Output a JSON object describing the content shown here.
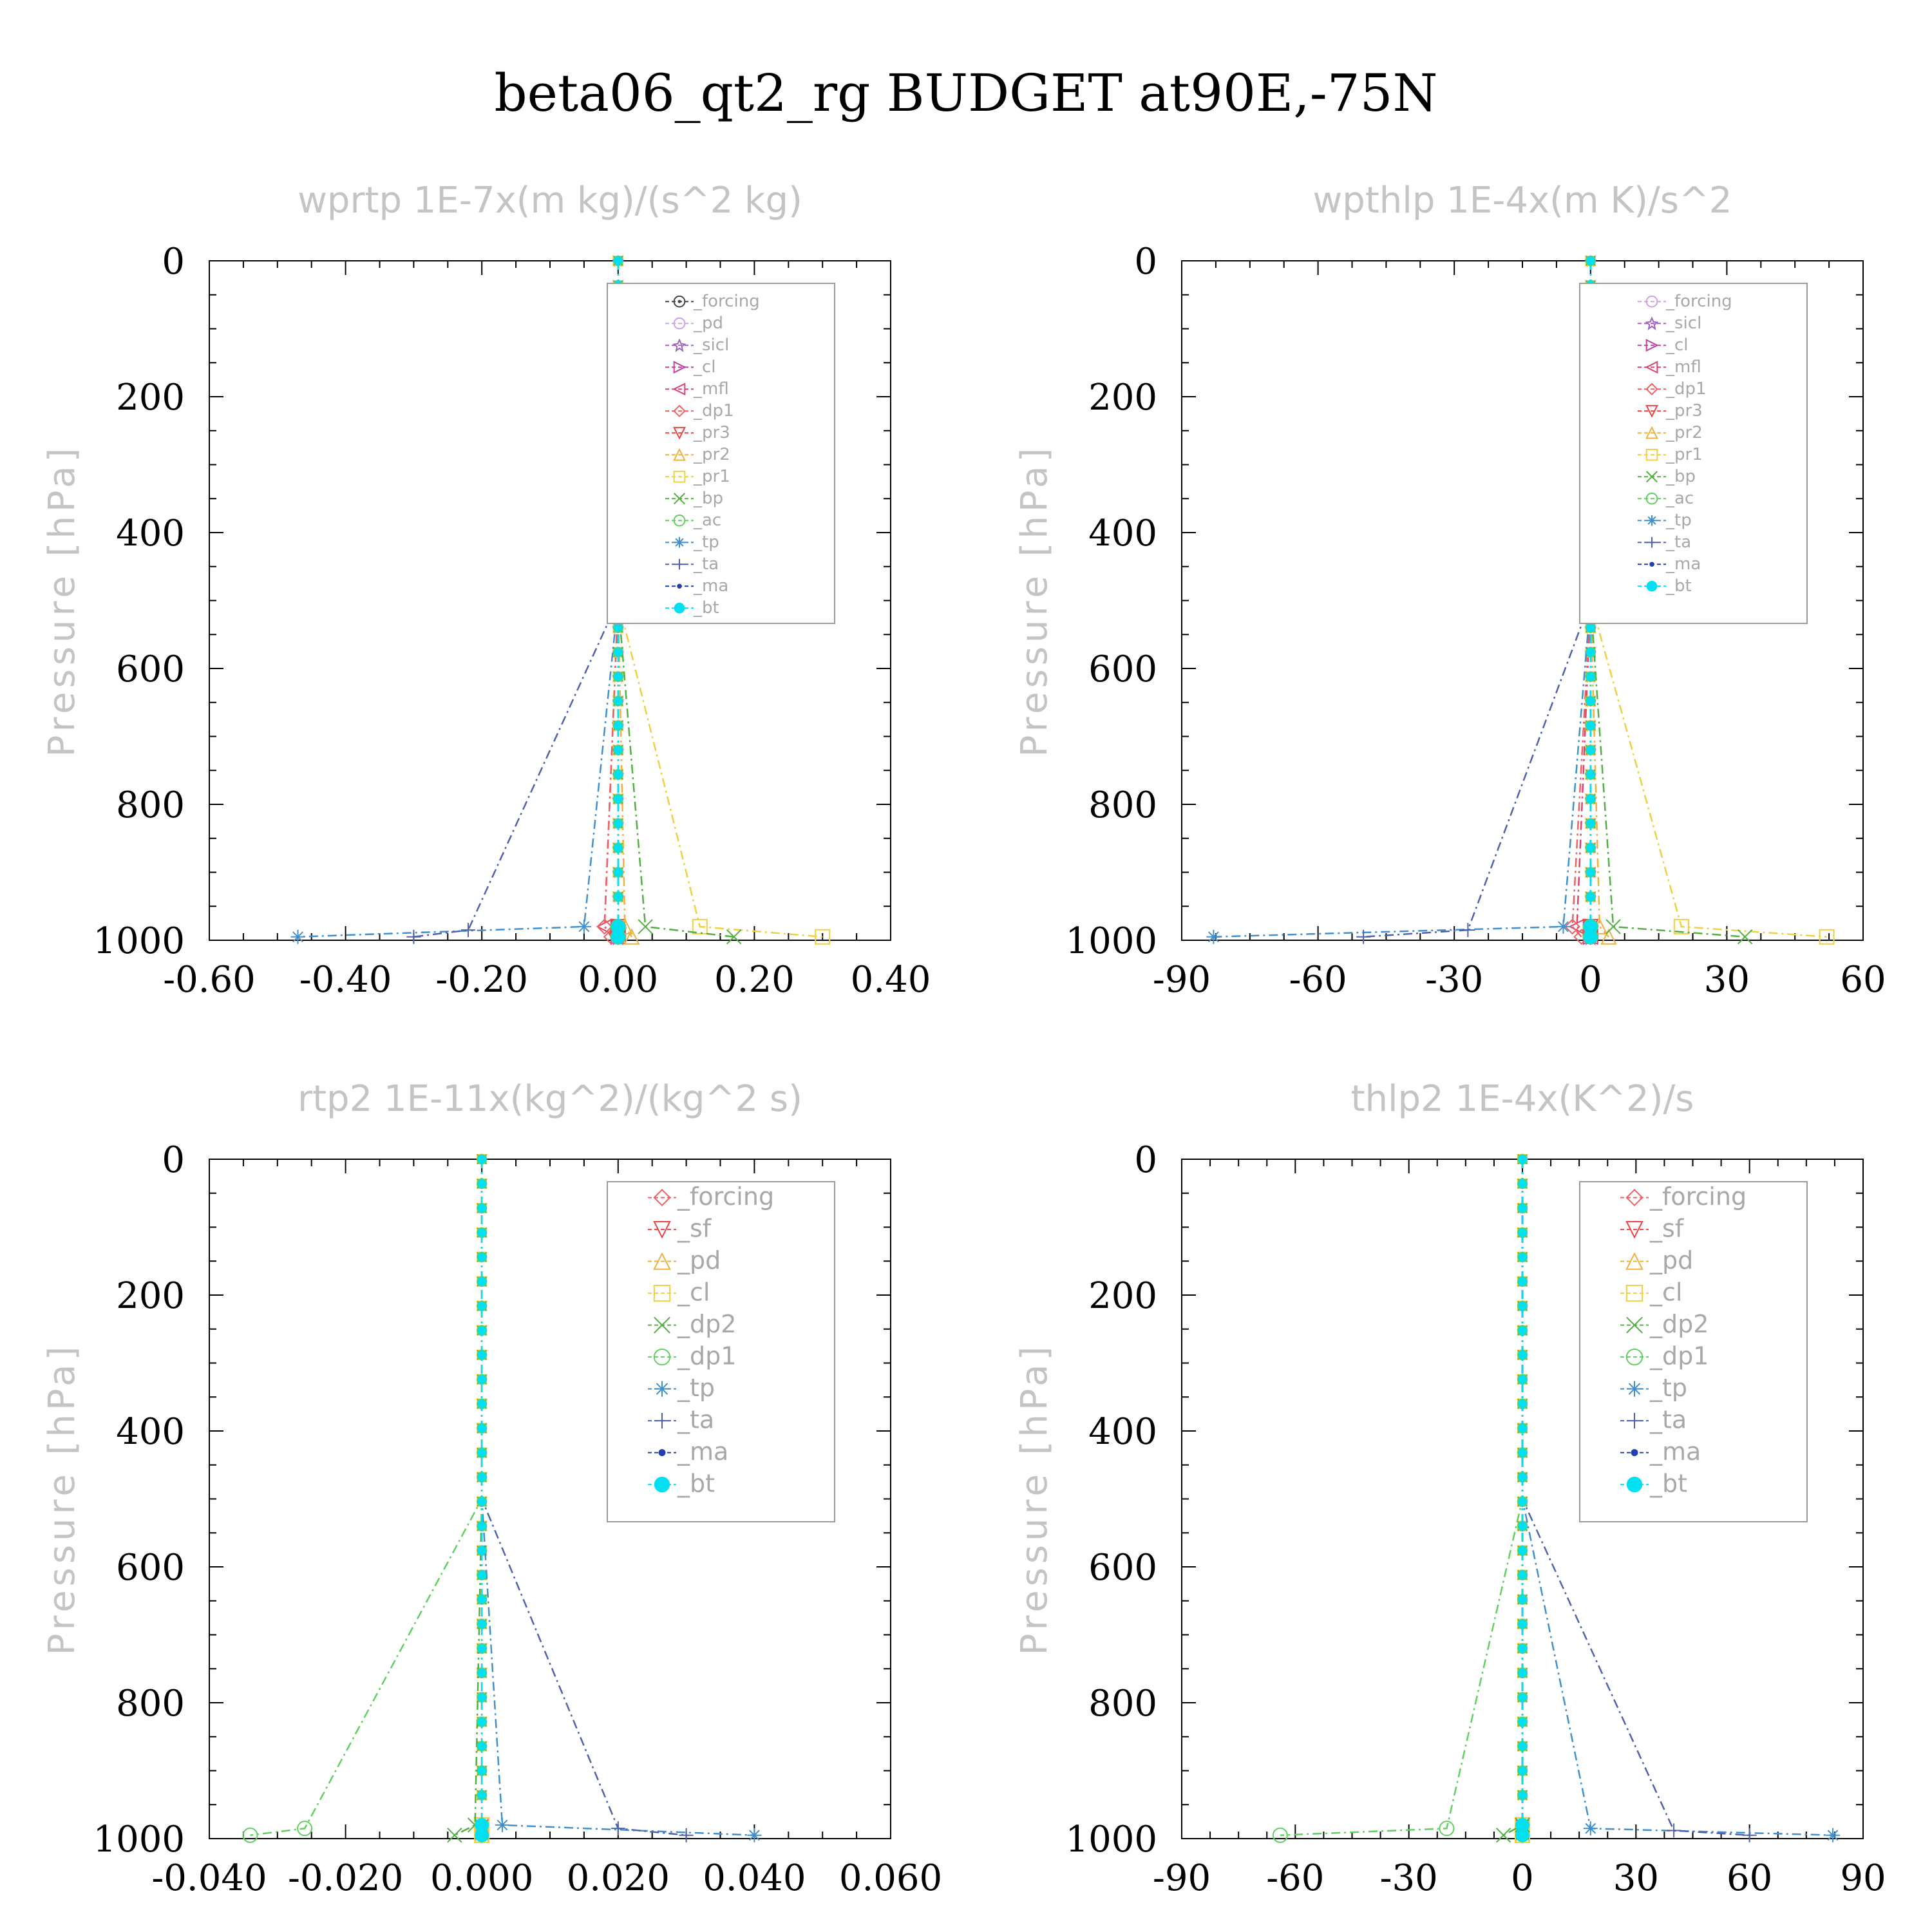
{
  "title": "beta06_qt2_rg  BUDGET at90E,-75N",
  "chart_data": [
    {
      "type": "line",
      "title": "wprtp   1E-7x(m kg)/(s^2 kg)",
      "ylabel": "Pressure [hPa]",
      "xlim": [
        -0.6,
        0.4
      ],
      "ylim": [
        1000,
        0
      ],
      "xticks": [
        "-0.60",
        "-0.40",
        "-0.20",
        "0.00",
        "0.20",
        "0.40"
      ],
      "yticks": [
        "0",
        "200",
        "400",
        "600",
        "800",
        "1000"
      ],
      "legend_position": "top-right",
      "series": [
        {
          "name": "_forcing",
          "color": "#444444",
          "marker": "circle-dot",
          "x": [
            0,
            0,
            0,
            0
          ],
          "y": [
            0,
            500,
            980,
            995
          ]
        },
        {
          "name": "_pd",
          "color": "#d0a0e8",
          "marker": "circle",
          "x": [
            0,
            0,
            0,
            0
          ],
          "y": [
            0,
            500,
            980,
            995
          ]
        },
        {
          "name": "_sicl",
          "color": "#a060c0",
          "marker": "star",
          "x": [
            0,
            0,
            0,
            0
          ],
          "y": [
            0,
            500,
            980,
            995
          ]
        },
        {
          "name": "_cl",
          "color": "#c040a0",
          "marker": "triangle-right",
          "x": [
            0,
            0,
            0,
            0
          ],
          "y": [
            0,
            500,
            980,
            995
          ]
        },
        {
          "name": "_mfl",
          "color": "#e04070",
          "marker": "triangle-left",
          "x": [
            0,
            0,
            -0.02,
            0
          ],
          "y": [
            0,
            500,
            980,
            995
          ]
        },
        {
          "name": "_dp1",
          "color": "#f06060",
          "marker": "diamond",
          "x": [
            0,
            0,
            -0.02,
            -0.01
          ],
          "y": [
            0,
            500,
            980,
            995
          ]
        },
        {
          "name": "_pr3",
          "color": "#f04040",
          "marker": "triangle-down",
          "x": [
            0,
            0,
            0,
            0
          ],
          "y": [
            0,
            500,
            980,
            995
          ]
        },
        {
          "name": "_pr2",
          "color": "#f0b040",
          "marker": "triangle-up",
          "x": [
            0,
            0,
            0.01,
            0.02
          ],
          "y": [
            0,
            500,
            980,
            995
          ]
        },
        {
          "name": "_pr1",
          "color": "#f0d040",
          "marker": "square",
          "x": [
            0,
            0,
            0.12,
            0.3
          ],
          "y": [
            0,
            500,
            980,
            995
          ]
        },
        {
          "name": "_bp",
          "color": "#50b040",
          "marker": "x",
          "x": [
            0,
            0,
            0.04,
            0.17
          ],
          "y": [
            0,
            500,
            980,
            995
          ]
        },
        {
          "name": "_ac",
          "color": "#60d060",
          "marker": "circle",
          "x": [
            0,
            0,
            0,
            0
          ],
          "y": [
            0,
            500,
            980,
            995
          ]
        },
        {
          "name": "_tp",
          "color": "#4090d0",
          "marker": "asterisk",
          "x": [
            0,
            0,
            -0.05,
            -0.47
          ],
          "y": [
            0,
            500,
            980,
            995
          ]
        },
        {
          "name": "_ta",
          "color": "#5060b0",
          "marker": "plus",
          "x": [
            0,
            0,
            -0.22,
            -0.3
          ],
          "y": [
            0,
            500,
            985,
            995
          ]
        },
        {
          "name": "_ma",
          "color": "#2040b0",
          "marker": "dot",
          "x": [
            0,
            0,
            0,
            0
          ],
          "y": [
            0,
            500,
            980,
            995
          ]
        },
        {
          "name": "_bt",
          "color": "#00e0f0",
          "marker": "filled-circle",
          "x": [
            0,
            0,
            0,
            0
          ],
          "y": [
            0,
            500,
            980,
            995
          ]
        }
      ]
    },
    {
      "type": "line",
      "title": "wpthlp   1E-4x(m K)/s^2",
      "ylabel": "Pressure [hPa]",
      "xlim": [
        -90,
        60
      ],
      "ylim": [
        1000,
        0
      ],
      "xticks": [
        "-90",
        "-60",
        "-30",
        "0",
        "30",
        "60"
      ],
      "yticks": [
        "0",
        "200",
        "400",
        "600",
        "800",
        "1000"
      ],
      "legend_position": "top-right",
      "series": [
        {
          "name": "_forcing",
          "color": "#d0a0e8",
          "marker": "circle",
          "x": [
            0,
            0,
            0,
            0
          ],
          "y": [
            0,
            500,
            980,
            995
          ]
        },
        {
          "name": "_sicl",
          "color": "#a060c0",
          "marker": "star",
          "x": [
            0,
            0,
            0,
            0
          ],
          "y": [
            0,
            500,
            980,
            995
          ]
        },
        {
          "name": "_cl",
          "color": "#c040a0",
          "marker": "triangle-right",
          "x": [
            0,
            0,
            0,
            0
          ],
          "y": [
            0,
            500,
            980,
            995
          ]
        },
        {
          "name": "_mfl",
          "color": "#e04070",
          "marker": "triangle-left",
          "x": [
            0,
            0,
            -3,
            0
          ],
          "y": [
            0,
            500,
            980,
            995
          ]
        },
        {
          "name": "_dp1",
          "color": "#f06060",
          "marker": "diamond",
          "x": [
            0,
            0,
            -4,
            -2
          ],
          "y": [
            0,
            500,
            980,
            995
          ]
        },
        {
          "name": "_pr3",
          "color": "#f04040",
          "marker": "triangle-down",
          "x": [
            0,
            0,
            0,
            0
          ],
          "y": [
            0,
            500,
            980,
            995
          ]
        },
        {
          "name": "_pr2",
          "color": "#f0b040",
          "marker": "triangle-up",
          "x": [
            0,
            0,
            2,
            4
          ],
          "y": [
            0,
            500,
            980,
            995
          ]
        },
        {
          "name": "_pr1",
          "color": "#f0d040",
          "marker": "square",
          "x": [
            0,
            0,
            20,
            52
          ],
          "y": [
            0,
            500,
            980,
            995
          ]
        },
        {
          "name": "_bp",
          "color": "#50b040",
          "marker": "x",
          "x": [
            0,
            0,
            5,
            34
          ],
          "y": [
            0,
            500,
            980,
            995
          ]
        },
        {
          "name": "_ac",
          "color": "#60d060",
          "marker": "circle",
          "x": [
            0,
            0,
            0,
            0
          ],
          "y": [
            0,
            500,
            980,
            995
          ]
        },
        {
          "name": "_tp",
          "color": "#4090d0",
          "marker": "asterisk",
          "x": [
            0,
            0,
            -6,
            -83
          ],
          "y": [
            0,
            500,
            980,
            995
          ]
        },
        {
          "name": "_ta",
          "color": "#5060b0",
          "marker": "plus",
          "x": [
            0,
            0,
            -27,
            -50
          ],
          "y": [
            0,
            500,
            985,
            995
          ]
        },
        {
          "name": "_ma",
          "color": "#2040b0",
          "marker": "dot",
          "x": [
            0,
            0,
            0,
            0
          ],
          "y": [
            0,
            500,
            980,
            995
          ]
        },
        {
          "name": "_bt",
          "color": "#00e0f0",
          "marker": "filled-circle",
          "x": [
            0,
            0,
            0,
            0
          ],
          "y": [
            0,
            500,
            980,
            995
          ]
        }
      ]
    },
    {
      "type": "line",
      "title": "rtp2   1E-11x(kg^2)/(kg^2 s)",
      "ylabel": "Pressure [hPa]",
      "xlim": [
        -0.04,
        0.06
      ],
      "ylim": [
        1000,
        0
      ],
      "xticks": [
        "-0.040",
        "-0.020",
        "0.000",
        "0.020",
        "0.040",
        "0.060"
      ],
      "yticks": [
        "0",
        "200",
        "400",
        "600",
        "800",
        "1000"
      ],
      "legend_position": "top-right",
      "series": [
        {
          "name": "_forcing",
          "color": "#f06060",
          "marker": "diamond",
          "x": [
            0,
            0,
            0,
            0
          ],
          "y": [
            0,
            500,
            980,
            995
          ]
        },
        {
          "name": "_sf",
          "color": "#f04040",
          "marker": "triangle-down",
          "x": [
            0,
            0,
            0,
            0
          ],
          "y": [
            0,
            500,
            980,
            995
          ]
        },
        {
          "name": "_pd",
          "color": "#f0b040",
          "marker": "triangle-up",
          "x": [
            0,
            0,
            0,
            0
          ],
          "y": [
            0,
            500,
            980,
            995
          ]
        },
        {
          "name": "_cl",
          "color": "#f0d040",
          "marker": "square",
          "x": [
            0,
            0,
            0,
            0
          ],
          "y": [
            0,
            500,
            980,
            995
          ]
        },
        {
          "name": "_dp2",
          "color": "#50b040",
          "marker": "x",
          "x": [
            0,
            0,
            -0.001,
            -0.004
          ],
          "y": [
            0,
            500,
            980,
            995
          ]
        },
        {
          "name": "_dp1",
          "color": "#60d060",
          "marker": "circle",
          "x": [
            0,
            0,
            -0.026,
            -0.034
          ],
          "y": [
            0,
            500,
            985,
            995
          ]
        },
        {
          "name": "_tp",
          "color": "#4090d0",
          "marker": "asterisk",
          "x": [
            0,
            0,
            0.003,
            0.04
          ],
          "y": [
            0,
            500,
            980,
            995
          ]
        },
        {
          "name": "_ta",
          "color": "#5060b0",
          "marker": "plus",
          "x": [
            0,
            0,
            0.02,
            0.03
          ],
          "y": [
            0,
            500,
            985,
            995
          ]
        },
        {
          "name": "_ma",
          "color": "#2040b0",
          "marker": "dot",
          "x": [
            0,
            0,
            0,
            0
          ],
          "y": [
            0,
            500,
            980,
            995
          ]
        },
        {
          "name": "_bt",
          "color": "#00e0f0",
          "marker": "filled-circle",
          "x": [
            0,
            0,
            0,
            0
          ],
          "y": [
            0,
            500,
            980,
            995
          ]
        }
      ]
    },
    {
      "type": "line",
      "title": "thlp2   1E-4x(K^2)/s",
      "ylabel": "Pressure [hPa]",
      "xlim": [
        -90,
        90
      ],
      "ylim": [
        1000,
        0
      ],
      "xticks": [
        "-90",
        "-60",
        "-30",
        "0",
        "30",
        "60",
        "90"
      ],
      "yticks": [
        "0",
        "200",
        "400",
        "600",
        "800",
        "1000"
      ],
      "legend_position": "top-right",
      "series": [
        {
          "name": "_forcing",
          "color": "#f06060",
          "marker": "diamond",
          "x": [
            0,
            0,
            0,
            0
          ],
          "y": [
            0,
            500,
            980,
            995
          ]
        },
        {
          "name": "_sf",
          "color": "#f04040",
          "marker": "triangle-down",
          "x": [
            0,
            0,
            0,
            0
          ],
          "y": [
            0,
            500,
            980,
            995
          ]
        },
        {
          "name": "_pd",
          "color": "#f0b040",
          "marker": "triangle-up",
          "x": [
            0,
            0,
            0,
            0
          ],
          "y": [
            0,
            500,
            980,
            995
          ]
        },
        {
          "name": "_cl",
          "color": "#f0d040",
          "marker": "square",
          "x": [
            0,
            0,
            0,
            0
          ],
          "y": [
            0,
            500,
            980,
            995
          ]
        },
        {
          "name": "_dp2",
          "color": "#50b040",
          "marker": "x",
          "x": [
            0,
            0,
            0,
            -5
          ],
          "y": [
            0,
            500,
            980,
            995
          ]
        },
        {
          "name": "_dp1",
          "color": "#60d060",
          "marker": "circle",
          "x": [
            0,
            0,
            -20,
            -64
          ],
          "y": [
            0,
            500,
            985,
            995
          ]
        },
        {
          "name": "_tp",
          "color": "#4090d0",
          "marker": "asterisk",
          "x": [
            0,
            0,
            18,
            82
          ],
          "y": [
            0,
            500,
            985,
            995
          ]
        },
        {
          "name": "_ta",
          "color": "#5060b0",
          "marker": "plus",
          "x": [
            0,
            0,
            40,
            60
          ],
          "y": [
            0,
            500,
            988,
            995
          ]
        },
        {
          "name": "_ma",
          "color": "#2040b0",
          "marker": "dot",
          "x": [
            0,
            0,
            0,
            0
          ],
          "y": [
            0,
            500,
            980,
            995
          ]
        },
        {
          "name": "_bt",
          "color": "#00e0f0",
          "marker": "filled-circle",
          "x": [
            0,
            0,
            0,
            0
          ],
          "y": [
            0,
            500,
            980,
            995
          ]
        }
      ]
    }
  ]
}
